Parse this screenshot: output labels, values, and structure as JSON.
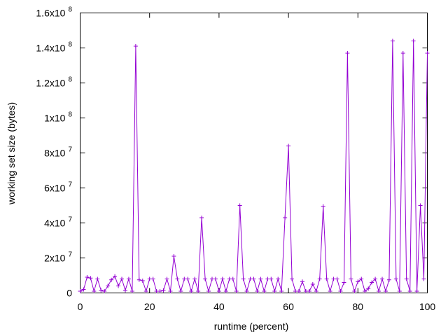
{
  "chart_data": {
    "type": "line",
    "title": "",
    "xlabel": "runtime (percent)",
    "ylabel": "working set size (bytes)",
    "xlim": [
      0,
      100
    ],
    "ylim": [
      0,
      160000000
    ],
    "grid": false,
    "legend": "none",
    "marker": "plus",
    "color": "#9400d3",
    "x_ticks": [
      {
        "value": 0,
        "label": "0"
      },
      {
        "value": 20,
        "label": "20"
      },
      {
        "value": 40,
        "label": "40"
      },
      {
        "value": 60,
        "label": "60"
      },
      {
        "value": 80,
        "label": "80"
      },
      {
        "value": 100,
        "label": "100"
      }
    ],
    "y_ticks": [
      {
        "value": 0,
        "mant": "0",
        "exp": ""
      },
      {
        "value": 20000000,
        "mant": "2x10",
        "exp": "7"
      },
      {
        "value": 40000000,
        "mant": "4x10",
        "exp": "7"
      },
      {
        "value": 60000000,
        "mant": "6x10",
        "exp": "7"
      },
      {
        "value": 80000000,
        "mant": "8x10",
        "exp": "7"
      },
      {
        "value": 100000000,
        "mant": "1x10",
        "exp": "8"
      },
      {
        "value": 120000000,
        "mant": "1.2x10",
        "exp": "8"
      },
      {
        "value": 140000000,
        "mant": "1.4x10",
        "exp": "8"
      },
      {
        "value": 160000000,
        "mant": "1.6x10",
        "exp": "8"
      }
    ],
    "series": [
      {
        "x": [
          0,
          1,
          2,
          3,
          4,
          5,
          6,
          7,
          8,
          9,
          10,
          11,
          12,
          13,
          14,
          15,
          16,
          17,
          18,
          19,
          20,
          21,
          22,
          23,
          24,
          25,
          26,
          27,
          28,
          29,
          30,
          31,
          32,
          33,
          34,
          35,
          36,
          37,
          38,
          39,
          40,
          41,
          42,
          43,
          44,
          45,
          46,
          47,
          48,
          49,
          50,
          51,
          52,
          53,
          54,
          55,
          56,
          57,
          58,
          59,
          60,
          61,
          62,
          63,
          64,
          65,
          66,
          67,
          68,
          69,
          70,
          71,
          72,
          73,
          74,
          75,
          76,
          77,
          78,
          79,
          80,
          81,
          82,
          83,
          84,
          85,
          86,
          87,
          88,
          89,
          90,
          91,
          92,
          93,
          94,
          95,
          96,
          97,
          98,
          99,
          100
        ],
        "y": [
          1000000,
          2000000,
          9000000,
          8500000,
          1000000,
          8000000,
          1500000,
          1000000,
          4000000,
          7500000,
          9500000,
          4000000,
          8000000,
          1500000,
          8000000,
          1000000,
          141000000,
          7500000,
          7000000,
          1000000,
          8000000,
          8000000,
          1000000,
          1000000,
          1500000,
          8000000,
          1000000,
          21000000,
          8000000,
          1000000,
          8000000,
          8000000,
          1000000,
          8000000,
          1000000,
          43000000,
          8000000,
          1000000,
          8000000,
          8000000,
          1000000,
          8000000,
          1000000,
          8000000,
          8000000,
          1000000,
          50000000,
          8000000,
          1000000,
          8000000,
          8000000,
          1000000,
          8000000,
          1000000,
          8000000,
          8000000,
          1000000,
          8000000,
          1000000,
          43000000,
          84000000,
          8000000,
          1000000,
          1000000,
          6500000,
          1000000,
          1000000,
          5000000,
          1000000,
          8000000,
          49500000,
          8000000,
          1000000,
          8000000,
          8000000,
          1000000,
          6000000,
          137000000,
          8000000,
          1000000,
          6500000,
          8000000,
          1000000,
          2500000,
          6000000,
          8000000,
          1000000,
          8000000,
          1000000,
          7500000,
          144000000,
          8000000,
          1000000,
          137000000,
          8000000,
          1000000,
          144000000,
          1000000,
          50000000,
          8000000,
          137000000
        ]
      }
    ]
  }
}
